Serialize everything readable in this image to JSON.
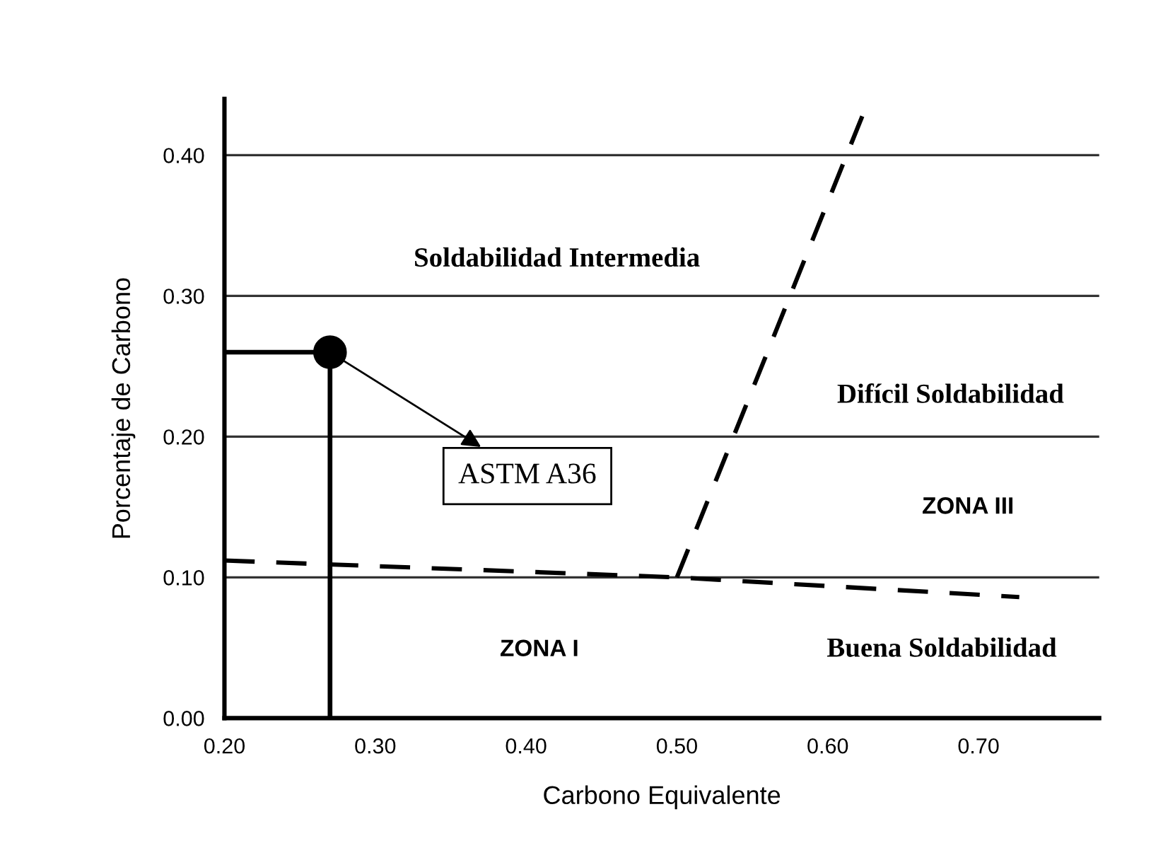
{
  "chart_data": {
    "type": "line",
    "xlabel": "Carbono Equivalente",
    "ylabel": "Porcentaje de Carbono",
    "xlim": [
      0.2,
      0.78
    ],
    "ylim": [
      0,
      0.44
    ],
    "xticks": [
      {
        "value": 0.2,
        "label": "0.20"
      },
      {
        "value": 0.3,
        "label": "0.30"
      },
      {
        "value": 0.4,
        "label": "0.40"
      },
      {
        "value": 0.5,
        "label": "0.50"
      },
      {
        "value": 0.6,
        "label": "0.60"
      },
      {
        "value": 0.7,
        "label": "0.70"
      }
    ],
    "yticks": [
      {
        "value": 0.0,
        "label": "0.00"
      },
      {
        "value": 0.1,
        "label": "0.10"
      },
      {
        "value": 0.2,
        "label": "0.20"
      },
      {
        "value": 0.3,
        "label": "0.30"
      },
      {
        "value": 0.4,
        "label": "0.40"
      }
    ],
    "grid": "y",
    "series": [
      {
        "color": "#000000",
        "line_style": "dashed",
        "x": [
          0.2,
          0.5,
          0.727
        ],
        "values": [
          0.112,
          0.1,
          0.086
        ]
      },
      {
        "color": "#000000",
        "line_style": "dashed",
        "x": [
          0.5,
          0.623
        ],
        "values": [
          0.1,
          0.428
        ]
      },
      {
        "color": "#000000",
        "line_style": "solid",
        "x": [
          0.2,
          0.27,
          0.27
        ],
        "values": [
          0.26,
          0.26,
          0.0
        ]
      },
      {
        "type": "scatter",
        "color": "#000000",
        "marker": "circle",
        "x": [
          0.27
        ],
        "values": [
          0.26
        ]
      }
    ],
    "annotations": [
      "ASTM A36",
      "Soldabilidad Intermedia",
      "Difícil Soldabilidad",
      "ZONA III",
      "ZONA I",
      "Buena Soldabilidad"
    ]
  }
}
